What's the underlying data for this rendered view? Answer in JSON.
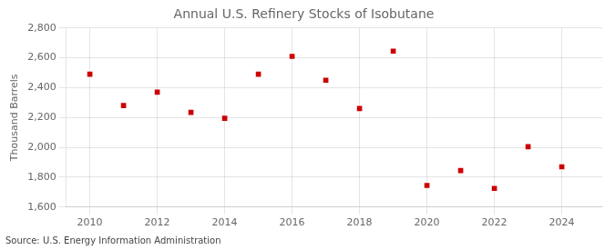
{
  "chart_data": {
    "type": "scatter",
    "title": "Annual U.S. Refinery Stocks of Isobutane",
    "ylabel": "Thousand Barrels",
    "annotations": [
      "Source: U.S. Energy Information Administration"
    ],
    "x": [
      2010,
      2011,
      2012,
      2013,
      2014,
      2015,
      2016,
      2017,
      2018,
      2019,
      2020,
      2021,
      2022,
      2023,
      2024
    ],
    "values": [
      2490,
      2280,
      2370,
      2235,
      2195,
      2490,
      2610,
      2450,
      2260,
      2645,
      1745,
      1845,
      1725,
      2005,
      1870
    ],
    "color": "#cc0000",
    "marker": "square",
    "xlim": [
      2009.3,
      2025.2
    ],
    "xticks": [
      2010,
      2012,
      2014,
      2016,
      2018,
      2020,
      2022,
      2024
    ],
    "ylim": [
      1600,
      2800
    ],
    "yticks": [
      {
        "value": 1600,
        "label": "1,600"
      },
      {
        "value": 1800,
        "label": "1,800"
      },
      {
        "value": 2000,
        "label": "2,000"
      },
      {
        "value": 2200,
        "label": "2,200"
      },
      {
        "value": 2400,
        "label": "2,400"
      },
      {
        "value": 2600,
        "label": "2,600"
      },
      {
        "value": 2800,
        "label": "2,800"
      }
    ],
    "grid": true
  }
}
